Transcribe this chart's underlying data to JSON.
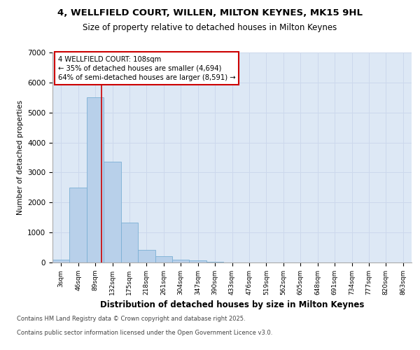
{
  "title1": "4, WELLFIELD COURT, WILLEN, MILTON KEYNES, MK15 9HL",
  "title2": "Size of property relative to detached houses in Milton Keynes",
  "xlabel": "Distribution of detached houses by size in Milton Keynes",
  "ylabel": "Number of detached properties",
  "categories": [
    "3sqm",
    "46sqm",
    "89sqm",
    "132sqm",
    "175sqm",
    "218sqm",
    "261sqm",
    "304sqm",
    "347sqm",
    "390sqm",
    "433sqm",
    "476sqm",
    "519sqm",
    "562sqm",
    "605sqm",
    "648sqm",
    "691sqm",
    "734sqm",
    "777sqm",
    "820sqm",
    "863sqm"
  ],
  "values": [
    100,
    2500,
    5500,
    3350,
    1320,
    430,
    220,
    100,
    70,
    30,
    10,
    0,
    0,
    0,
    0,
    0,
    0,
    0,
    0,
    0,
    0
  ],
  "bar_color": "#b8d0ea",
  "bar_edge_color": "#7aafd4",
  "vline_color": "#cc0000",
  "vline_pos": 2.35,
  "annotation_text": "4 WELLFIELD COURT: 108sqm\n← 35% of detached houses are smaller (4,694)\n64% of semi-detached houses are larger (8,591) →",
  "annotation_box_edgecolor": "#cc0000",
  "ylim": [
    0,
    7000
  ],
  "yticks": [
    0,
    1000,
    2000,
    3000,
    4000,
    5000,
    6000,
    7000
  ],
  "grid_color": "#ccd8ec",
  "background_color": "#dde8f5",
  "footer1": "Contains HM Land Registry data © Crown copyright and database right 2025.",
  "footer2": "Contains public sector information licensed under the Open Government Licence v3.0."
}
